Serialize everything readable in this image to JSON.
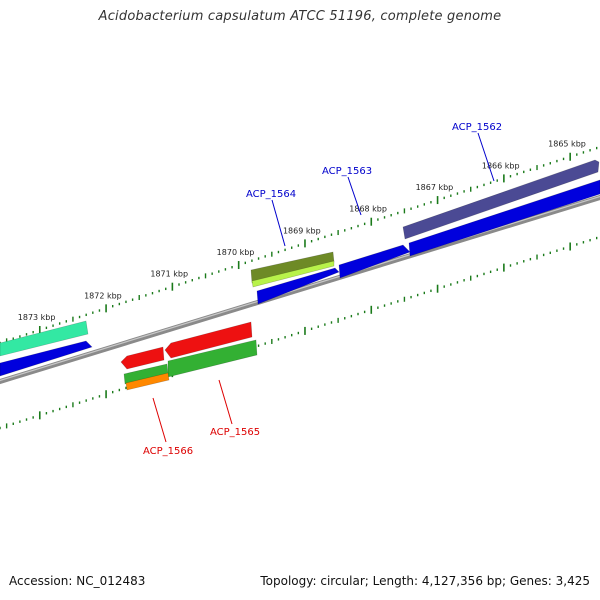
{
  "title": "Acidobacterium capsulatum ATCC 51196, complete genome",
  "footer": {
    "accession": "Accession: NC_012483",
    "summary": "Topology: circular; Length: 4,127,356 bp; Genes: 3,425"
  },
  "colors": {
    "backbone": "#8a8a8a",
    "tick": "#1a7a1a",
    "label_top": "#0000cc",
    "label_bottom": "#dd0000"
  },
  "scale": {
    "unit": "kbp",
    "ticks": [
      {
        "kbp": 1865,
        "label": "1865 kbp"
      },
      {
        "kbp": 1866,
        "label": "1866 kbp"
      },
      {
        "kbp": 1867,
        "label": "1867 kbp"
      },
      {
        "kbp": 1868,
        "label": "1868 kbp"
      },
      {
        "kbp": 1869,
        "label": "1869 kbp"
      },
      {
        "kbp": 1870,
        "label": "1870 kbp"
      },
      {
        "kbp": 1871,
        "label": "1871 kbp"
      },
      {
        "kbp": 1872,
        "label": "1872 kbp"
      },
      {
        "kbp": 1873,
        "label": "1873 kbp"
      }
    ]
  },
  "gene_labels": [
    {
      "id": "ACP_1562",
      "text": "ACP_1562",
      "strand": "plus"
    },
    {
      "id": "ACP_1563",
      "text": "ACP_1563",
      "strand": "plus"
    },
    {
      "id": "ACP_1564",
      "text": "ACP_1564",
      "strand": "plus"
    },
    {
      "id": "ACP_1565",
      "text": "ACP_1565",
      "strand": "minus"
    },
    {
      "id": "ACP_1566",
      "text": "ACP_1566",
      "strand": "minus"
    }
  ],
  "features": [
    {
      "name": "feature-1562-gene",
      "color": "#0000dd",
      "strand": "plus"
    },
    {
      "name": "feature-1562-cds",
      "color": "#4b4a94",
      "strand": "plus"
    },
    {
      "name": "feature-1563-gene",
      "color": "#0000dd",
      "strand": "plus"
    },
    {
      "name": "feature-1564-gene",
      "color": "#0000dd",
      "strand": "plus"
    },
    {
      "name": "feature-1564-cds-olive",
      "color": "#6e8a26",
      "strand": "plus"
    },
    {
      "name": "feature-1564-cds-lime",
      "color": "#b8f24a",
      "strand": "plus"
    },
    {
      "name": "feature-left-teal",
      "color": "#33e8a3",
      "strand": "plus"
    },
    {
      "name": "feature-left-blue",
      "color": "#0000dd",
      "strand": "plus"
    },
    {
      "name": "feature-1565-red",
      "color": "#ee1111",
      "strand": "minus"
    },
    {
      "name": "feature-1565-green",
      "color": "#33b033",
      "strand": "minus"
    },
    {
      "name": "feature-1566-red",
      "color": "#ee1111",
      "strand": "minus"
    },
    {
      "name": "feature-1566-green",
      "color": "#33b033",
      "strand": "minus"
    },
    {
      "name": "feature-1566-orange",
      "color": "#ff8800",
      "strand": "minus"
    }
  ]
}
